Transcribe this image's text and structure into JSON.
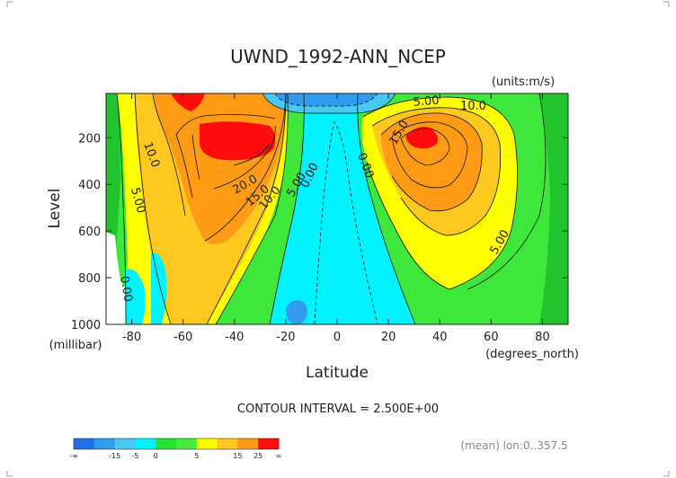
{
  "chart_data": {
    "type": "contour",
    "title": "UWND_1992-ANN_NCEP",
    "units": "(units:m/s)",
    "xlabel": "Latitude",
    "xunits": "(degrees_north)",
    "ylabel": "Level",
    "yunits": "(millibar)",
    "xlim": [
      -90,
      90
    ],
    "ylim": [
      1000,
      10
    ],
    "xticks": [
      -80,
      -60,
      -40,
      -20,
      0,
      20,
      40,
      60,
      80
    ],
    "xtick_labels": [
      "-80",
      "-60",
      "-40",
      "-20",
      "0",
      "20",
      "40",
      "60",
      "80"
    ],
    "yticks": [
      200,
      400,
      600,
      800,
      1000
    ],
    "ytick_labels": [
      "200",
      "400",
      "600",
      "800",
      "1000"
    ],
    "contour_interval_text": "CONTOUR INTERVAL = 2.500E+00",
    "contour_labels": [
      "10.0",
      "5.00",
      "0.00",
      "20.0",
      "15.0",
      "10.0",
      "5.00",
      "0.00",
      "0.00",
      "5.00",
      "10.0",
      "15.0",
      "5.00"
    ],
    "colorbar": {
      "colors": [
        "#1f6fe8",
        "#2f9cf0",
        "#48c8f2",
        "#00f2ff",
        "#22e236",
        "#46ee3c",
        "#ffff00",
        "#ffc81e",
        "#ff9b14",
        "#ff0c0c"
      ],
      "tick_labels": [
        "-∞",
        "-15",
        "-5",
        "0",
        "5",
        "15",
        "25",
        "∞"
      ]
    },
    "footer": "(mean) lon:0..357.5"
  }
}
